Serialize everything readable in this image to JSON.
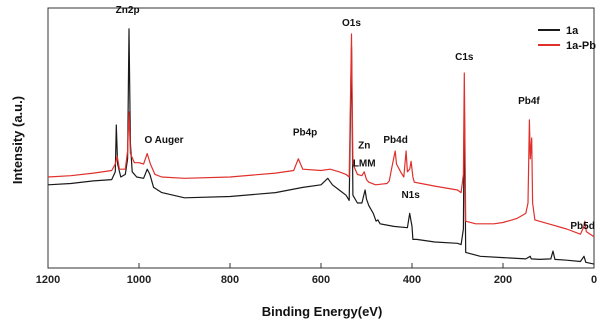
{
  "chart_data": {
    "type": "line",
    "xlabel": "Binding Energy(eV)",
    "ylabel": "Intensity (a.u.)",
    "xlim": [
      1200,
      0
    ],
    "ylim": [
      0,
      100
    ],
    "x_reversed": true,
    "x_ticks": [
      1200,
      1000,
      800,
      600,
      400,
      200,
      0
    ],
    "grid": false,
    "legend_position": "top-right",
    "series": [
      {
        "name": "1a",
        "color": "#1a1a1a",
        "points": [
          [
            1200,
            32.0
          ],
          [
            1150,
            32.5
          ],
          [
            1100,
            33.5
          ],
          [
            1060,
            34.0
          ],
          [
            1052,
            37.0
          ],
          [
            1050,
            55.0
          ],
          [
            1047,
            40.0
          ],
          [
            1040,
            35.0
          ],
          [
            1030,
            36.0
          ],
          [
            1025,
            42.0
          ],
          [
            1022,
            92.0
          ],
          [
            1019,
            48.0
          ],
          [
            1015,
            37.0
          ],
          [
            1005,
            35.0
          ],
          [
            990,
            34.5
          ],
          [
            982,
            38.0
          ],
          [
            976,
            36.0
          ],
          [
            968,
            31.0
          ],
          [
            950,
            29.0
          ],
          [
            900,
            27.0
          ],
          [
            800,
            27.5
          ],
          [
            700,
            29.0
          ],
          [
            640,
            31.0
          ],
          [
            600,
            32.0
          ],
          [
            585,
            34.5
          ],
          [
            575,
            32.0
          ],
          [
            560,
            30.0
          ],
          [
            545,
            28.0
          ],
          [
            538,
            26.0
          ],
          [
            533,
            85.0
          ],
          [
            530,
            28.0
          ],
          [
            520,
            25.0
          ],
          [
            510,
            25.0
          ],
          [
            503,
            30.0
          ],
          [
            500,
            26.5
          ],
          [
            495,
            24.0
          ],
          [
            485,
            21.0
          ],
          [
            479,
            18.0
          ],
          [
            475,
            18.5
          ],
          [
            470,
            17.0
          ],
          [
            440,
            16.0
          ],
          [
            410,
            15.5
          ],
          [
            405,
            21.0
          ],
          [
            400,
            16.0
          ],
          [
            398,
            11.0
          ],
          [
            390,
            11.0
          ],
          [
            350,
            10.0
          ],
          [
            300,
            9.5
          ],
          [
            292,
            9.0
          ],
          [
            287,
            15.0
          ],
          [
            285,
            65.0
          ],
          [
            282,
            6.0
          ],
          [
            250,
            4.5
          ],
          [
            200,
            4.0
          ],
          [
            150,
            3.5
          ],
          [
            140,
            4.5
          ],
          [
            138,
            3.5
          ],
          [
            120,
            3.3
          ],
          [
            95,
            3.5
          ],
          [
            90,
            6.5
          ],
          [
            86,
            3.3
          ],
          [
            60,
            3.0
          ],
          [
            30,
            2.5
          ],
          [
            22,
            4.5
          ],
          [
            18,
            2.2
          ],
          [
            0,
            1.5
          ]
        ]
      },
      {
        "name": "1a-Pb",
        "color": "#e0302c",
        "points": [
          [
            1200,
            35.0
          ],
          [
            1150,
            35.5
          ],
          [
            1100,
            36.5
          ],
          [
            1060,
            37.5
          ],
          [
            1052,
            40.0
          ],
          [
            1048,
            43.0
          ],
          [
            1043,
            38.0
          ],
          [
            1030,
            38.0
          ],
          [
            1025,
            45.0
          ],
          [
            1022,
            60.0
          ],
          [
            1019,
            44.0
          ],
          [
            1010,
            40.5
          ],
          [
            1000,
            40.5
          ],
          [
            990,
            40.0
          ],
          [
            982,
            44.0
          ],
          [
            975,
            40.0
          ],
          [
            965,
            36.0
          ],
          [
            950,
            35.0
          ],
          [
            900,
            34.5
          ],
          [
            800,
            35.0
          ],
          [
            700,
            36.5
          ],
          [
            660,
            37.5
          ],
          [
            650,
            42.0
          ],
          [
            640,
            38.0
          ],
          [
            600,
            37.5
          ],
          [
            580,
            38.0
          ],
          [
            560,
            37.0
          ],
          [
            545,
            36.0
          ],
          [
            538,
            35.0
          ],
          [
            533,
            90.0
          ],
          [
            530,
            40.0
          ],
          [
            520,
            36.0
          ],
          [
            510,
            35.5
          ],
          [
            505,
            37.0
          ],
          [
            500,
            34.0
          ],
          [
            495,
            33.0
          ],
          [
            480,
            32.0
          ],
          [
            455,
            32.5
          ],
          [
            450,
            33.5
          ],
          [
            445,
            38.0
          ],
          [
            437,
            45.0
          ],
          [
            434,
            40.0
          ],
          [
            425,
            37.0
          ],
          [
            418,
            35.0
          ],
          [
            413,
            45.0
          ],
          [
            410,
            37.0
          ],
          [
            405,
            38.0
          ],
          [
            402,
            41.0
          ],
          [
            398,
            35.0
          ],
          [
            395,
            33.0
          ],
          [
            380,
            32.5
          ],
          [
            350,
            31.5
          ],
          [
            300,
            30.0
          ],
          [
            292,
            29.0
          ],
          [
            287,
            36.0
          ],
          [
            285,
            75.0
          ],
          [
            282,
            18.0
          ],
          [
            260,
            17.0
          ],
          [
            220,
            17.0
          ],
          [
            200,
            17.5
          ],
          [
            170,
            19.0
          ],
          [
            160,
            20.0
          ],
          [
            150,
            21.0
          ],
          [
            145,
            25.0
          ],
          [
            142,
            57.0
          ],
          [
            140,
            42.0
          ],
          [
            137,
            50.0
          ],
          [
            135,
            25.0
          ],
          [
            130,
            18.5
          ],
          [
            100,
            17.0
          ],
          [
            60,
            15.0
          ],
          [
            30,
            13.0
          ],
          [
            22,
            16.0
          ],
          [
            20,
            18.0
          ],
          [
            17,
            14.0
          ],
          [
            0,
            12.0
          ]
        ]
      }
    ],
    "annotations": [
      {
        "text": "Zn2p",
        "x": 1025,
        "y": 98
      },
      {
        "text": "O Auger",
        "x": 945,
        "y": 48
      },
      {
        "text": "Pb4p",
        "x": 635,
        "y": 51
      },
      {
        "text": "O1s",
        "x": 533,
        "y": 93
      },
      {
        "text": "Zn",
        "x": 505,
        "y": 46
      },
      {
        "text": "LMM",
        "x": 505,
        "y": 39
      },
      {
        "text": "Pb4d",
        "x": 436,
        "y": 48
      },
      {
        "text": "N1s",
        "x": 403,
        "y": 27
      },
      {
        "text": "C1s",
        "x": 285,
        "y": 80
      },
      {
        "text": "Pb4f",
        "x": 143,
        "y": 63
      },
      {
        "text": "Pb5d",
        "x": 25,
        "y": 15
      }
    ]
  }
}
